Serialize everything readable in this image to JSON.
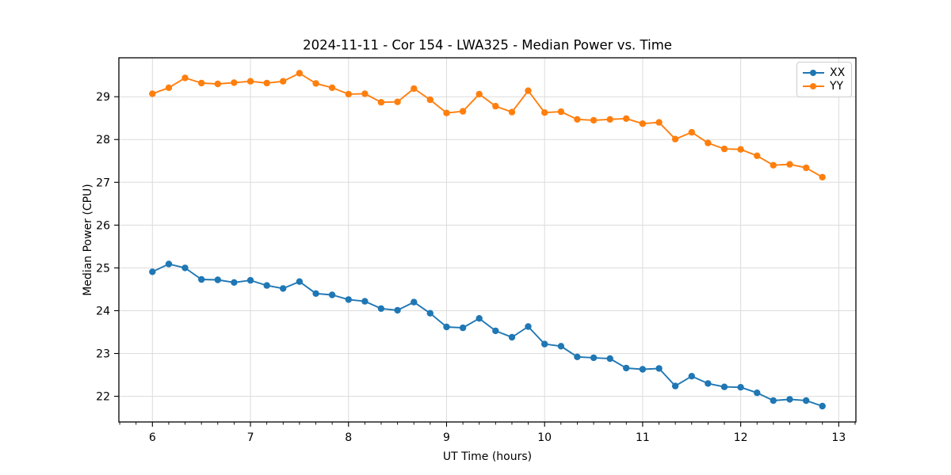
{
  "chart_data": {
    "type": "line",
    "title": "2024-11-11 - Cor 154 - LWA325 - Median Power vs. Time",
    "xlabel": "UT Time (hours)",
    "ylabel": "Median Power (CPU)",
    "xlim": [
      5.658,
      13.175
    ],
    "ylim": [
      21.4,
      29.91
    ],
    "xticks": [
      6,
      7,
      8,
      9,
      10,
      11,
      12,
      13
    ],
    "yticks": [
      22,
      23,
      24,
      25,
      26,
      27,
      28,
      29
    ],
    "x_minor_tick_step": 0.16667,
    "grid": true,
    "grid_color": "#dcdcdc",
    "legend_position": "upper right",
    "marker": "o",
    "x": [
      6.0,
      6.167,
      6.333,
      6.5,
      6.667,
      6.833,
      7.0,
      7.167,
      7.333,
      7.5,
      7.667,
      7.833,
      8.0,
      8.167,
      8.333,
      8.5,
      8.667,
      8.833,
      9.0,
      9.167,
      9.333,
      9.5,
      9.667,
      9.833,
      10.0,
      10.167,
      10.333,
      10.5,
      10.667,
      10.833,
      11.0,
      11.167,
      11.333,
      11.5,
      11.667,
      11.833,
      12.0,
      12.167,
      12.333,
      12.5,
      12.667,
      12.833
    ],
    "series": [
      {
        "name": "XX",
        "color": "#1f77b4",
        "values": [
          24.91,
          25.09,
          25.0,
          24.73,
          24.72,
          24.66,
          24.71,
          24.59,
          24.52,
          24.68,
          24.4,
          24.37,
          24.26,
          24.22,
          24.05,
          24.01,
          24.2,
          23.94,
          23.62,
          23.6,
          23.82,
          23.53,
          23.38,
          23.63,
          23.22,
          23.17,
          22.92,
          22.9,
          22.88,
          22.66,
          22.63,
          22.65,
          22.24,
          22.47,
          22.3,
          22.22,
          22.21,
          22.08,
          21.9,
          21.93,
          21.9,
          21.77
        ]
      },
      {
        "name": "YY",
        "color": "#ff7f0e",
        "values": [
          29.07,
          29.21,
          29.44,
          29.32,
          29.3,
          29.33,
          29.36,
          29.32,
          29.36,
          29.55,
          29.31,
          29.21,
          29.06,
          29.07,
          28.87,
          28.88,
          29.19,
          28.93,
          28.62,
          28.66,
          29.06,
          28.78,
          28.64,
          29.14,
          28.63,
          28.65,
          28.47,
          28.45,
          28.47,
          28.49,
          28.37,
          28.4,
          28.01,
          28.17,
          27.92,
          27.78,
          27.77,
          27.62,
          27.4,
          27.42,
          27.34,
          27.12
        ]
      }
    ]
  }
}
